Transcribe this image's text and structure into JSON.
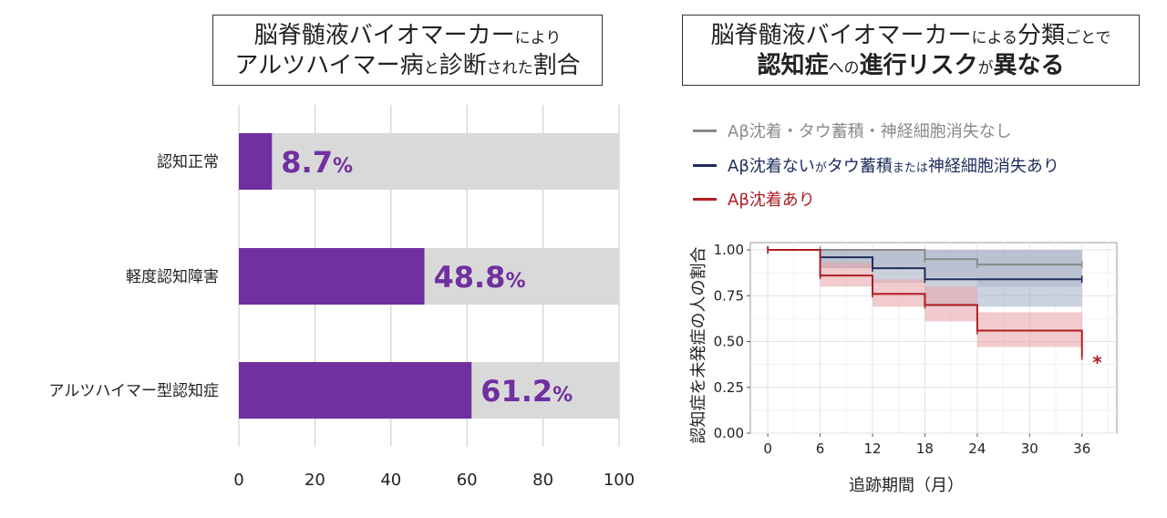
{
  "left_title": {
    "line1_big": "脳脊髄液バイオマーカー",
    "line1_small": "により",
    "line2_a": "アルツハイマー病",
    "line2_b": "と",
    "line2_c": "診断",
    "line2_d": "された",
    "line2_e": "割合"
  },
  "right_title": {
    "line1_big": "脳脊髄液バイオマーカー",
    "line1_small": "による",
    "line1_big2": "分類",
    "line1_small2": "ごとで",
    "line2_a": "認知症",
    "line2_b": "への",
    "line2_c": "進行リスク",
    "line2_d": "が",
    "line2_e": "異なる"
  },
  "legend": [
    {
      "label": "Aβ沈着・タウ蓄積・神経細胞消失なし",
      "color": "#8a8a8a"
    },
    {
      "label_a": "Aβ沈着ない",
      "label_b": "が",
      "label_c": "タウ蓄積",
      "label_d": "または",
      "label_e": "神経細胞消失あり",
      "color": "#1f2d5c"
    },
    {
      "label": "Aβ沈着あり",
      "color": "#b01c22"
    }
  ],
  "colors": {
    "bar_fill": "#7030a0",
    "bar_bg": "#d9d9d9",
    "grey_series": "#8a8a8a",
    "navy_series": "#1f2d5c",
    "red_series": "#b01c22",
    "grey_band": "#b8b8c6",
    "navy_band": "#a8b4c8",
    "red_band": "#e8a8ac"
  },
  "chart_data": [
    {
      "type": "bar",
      "orientation": "horizontal",
      "categories": [
        "認知正常",
        "軽度認知障害",
        "アルツハイマー型認知症"
      ],
      "values": [
        8.7,
        48.8,
        61.2
      ],
      "value_labels": [
        "8.7",
        "48.8",
        "61.2"
      ],
      "unit": "%",
      "xlim": [
        0,
        100
      ],
      "x_ticks": [
        0,
        20,
        40,
        60,
        80,
        100
      ],
      "x_tick_labels": [
        "0",
        "20",
        "40",
        "60",
        "80",
        "100"
      ]
    },
    {
      "type": "line",
      "subtype": "kaplan-meier step",
      "xlabel": "追跡期間（月）",
      "ylabel": "認知症を未発症の人の割合",
      "xlim": [
        -2,
        40
      ],
      "ylim": [
        0,
        1.04
      ],
      "x_ticks": [
        0,
        6,
        12,
        18,
        24,
        30,
        36
      ],
      "x_tick_labels": [
        "0",
        "6",
        "12",
        "18",
        "24",
        "30",
        "36"
      ],
      "y_ticks": [
        0.0,
        0.25,
        0.5,
        0.75,
        1.0
      ],
      "y_tick_labels": [
        "0.00",
        "0.25",
        "0.50",
        "0.75",
        "1.00"
      ],
      "grid": true,
      "annotation": "*",
      "series": [
        {
          "name": "Aβ沈着・タウ蓄積・神経細胞消失なし",
          "color": "#8a8a8a",
          "x": [
            0,
            6,
            18,
            24,
            36
          ],
          "y": [
            1.0,
            1.0,
            0.95,
            0.92,
            0.92
          ],
          "ci_lower": [
            1.0,
            0.9,
            0.85,
            0.8,
            0.8
          ],
          "ci_upper": [
            1.0,
            1.0,
            1.0,
            1.0,
            1.0
          ]
        },
        {
          "name": "Aβ沈着ないがタウ蓄積または神経細胞消失あり",
          "color": "#1f2d5c",
          "x": [
            0,
            6,
            12,
            18,
            36
          ],
          "y": [
            1.0,
            0.96,
            0.9,
            0.84,
            0.84
          ],
          "ci_lower": [
            1.0,
            0.9,
            0.82,
            0.69,
            0.69
          ],
          "ci_upper": [
            1.0,
            1.0,
            1.0,
            1.0,
            1.0
          ]
        },
        {
          "name": "Aβ沈着あり",
          "color": "#b01c22",
          "x": [
            0,
            6,
            12,
            18,
            24,
            36
          ],
          "y": [
            1.0,
            0.86,
            0.76,
            0.7,
            0.56,
            0.42
          ],
          "ci_lower": [
            1.0,
            0.8,
            0.69,
            0.61,
            0.47,
            0.47
          ],
          "ci_upper": [
            1.0,
            0.93,
            0.84,
            0.8,
            0.66,
            0.66
          ]
        }
      ]
    }
  ]
}
